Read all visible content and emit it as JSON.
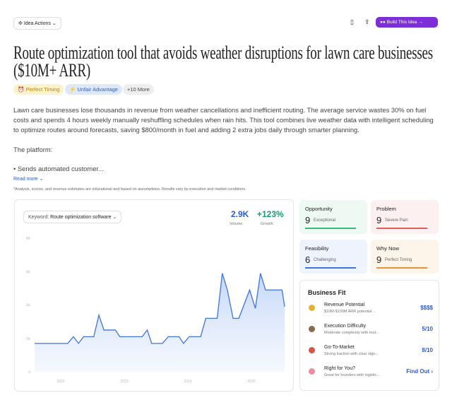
{
  "toolbar": {
    "actions": "Idea Actions",
    "build": "Build This Idea"
  },
  "idea": {
    "title": "Route optimization tool that avoids weather disruptions for lawn care businesses ($10M+ ARR)",
    "tags": [
      "Perfect Timing",
      "Unfair Advantage",
      "+10 More"
    ],
    "description": "Lawn care businesses lose thousands in revenue from weather cancellations and inefficient routing. The average service wastes 30% on fuel costs and spends 4 hours weekly manually reshuffling schedules when rain hits. This tool combines live weather data with intelligent scheduling to optimize routes around forecasts, saving $800/month in fuel and adding 2 extra jobs daily through smarter planning.",
    "platform": "The platform:",
    "bullet": "• Sends automated customer...",
    "read_more": "Read more",
    "disclaimer": "*Analysis, scores, and revenue estimates are educational and based on assumptions. Results vary by execution and market conditions."
  },
  "trend": {
    "keyword_label": "Keyword:",
    "keyword": "Route optimization software",
    "volume": "2.9K",
    "volume_label": "Volume",
    "growth": "+123%",
    "growth_label": "Growth"
  },
  "chart_data": {
    "type": "area",
    "color": "#3f73e0",
    "x": [
      2021.59,
      2022.11,
      2022.2,
      2022.28,
      2022.36,
      2022.52,
      2022.6,
      2022.68,
      2022.86,
      2022.93,
      2023.28,
      2023.36,
      2023.43,
      2023.6,
      2023.69,
      2023.86,
      2023.93,
      2024.02,
      2024.2,
      2024.28,
      2024.46,
      2024.54,
      2024.62,
      2024.71,
      2024.8,
      2024.97,
      2025.06,
      2025.14,
      2025.22,
      2025.31,
      2025.48,
      2025.52
    ],
    "values": [
      1700,
      1700,
      2100,
      1700,
      2100,
      2100,
      3400,
      2500,
      2500,
      2100,
      2100,
      2500,
      1700,
      1700,
      2100,
      2100,
      1700,
      2100,
      2100,
      3200,
      3200,
      5900,
      4900,
      3200,
      3200,
      4900,
      3800,
      5900,
      4900,
      4900,
      4900,
      3900
    ],
    "xlim": [
      2021.59,
      2025.52
    ],
    "xticks": [
      2022,
      2023,
      2024,
      2025
    ],
    "ylim": [
      0,
      8000
    ],
    "yticks": [
      0,
      {
        "value": 2000,
        "label": "2K"
      },
      {
        "value": 4000,
        "label": "4K"
      },
      {
        "value": 6000,
        "label": "6K"
      },
      {
        "value": 8000,
        "label": "8K"
      }
    ]
  },
  "scores": [
    {
      "label": "Opportunity",
      "score": 9,
      "note": "Exceptional"
    },
    {
      "label": "Problem",
      "score": 9,
      "note": "Severe Pain"
    },
    {
      "label": "Feasibility",
      "score": 6,
      "note": "Challenging"
    },
    {
      "label": "Why Now",
      "score": 9,
      "note": "Perfect Timing"
    }
  ],
  "business_fit": {
    "title": "Business Fit",
    "rows": [
      {
        "name": "Revenue Potential",
        "detail": "$10M-$100M ARR potential ...",
        "value": "$$$$"
      },
      {
        "name": "Execution Difficulty",
        "detail": "Moderate complexity with rout...",
        "value": "5/10"
      },
      {
        "name": "Go-To-Market",
        "detail": "Strong traction with clear sign...",
        "value": "8/10"
      },
      {
        "name": "Right for You?",
        "detail": "Great for founders with logistic...",
        "value": "Find Out ›"
      }
    ]
  }
}
